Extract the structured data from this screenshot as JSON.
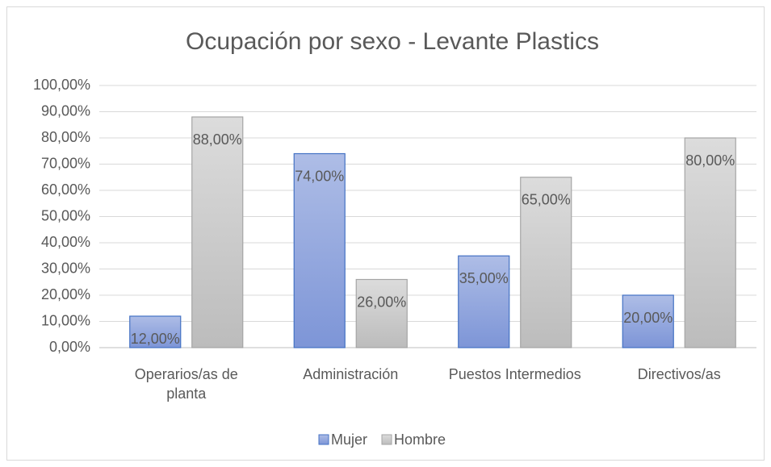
{
  "chart_data": {
    "type": "bar",
    "title": "Ocupación por sexo - Levante Plastics",
    "categories": [
      "Operarios/as de planta",
      "Administración",
      "Puestos Intermedios",
      "Directivos/as"
    ],
    "series": [
      {
        "name": "Mujer",
        "color": "#4472c4",
        "values": [
          12,
          74,
          35,
          20
        ],
        "value_labels": [
          "12,00%",
          "74,00%",
          "35,00%",
          "20,00%"
        ]
      },
      {
        "name": "Hombre",
        "color": "#a5a5a5",
        "values": [
          88,
          26,
          65,
          80
        ],
        "value_labels": [
          "88,00%",
          "26,00%",
          "65,00%",
          "80,00%"
        ]
      }
    ],
    "ylim": [
      0,
      100
    ],
    "yticks": [
      {
        "value": 0,
        "label": "0,00%"
      },
      {
        "value": 10,
        "label": "10,00%"
      },
      {
        "value": 20,
        "label": "20,00%"
      },
      {
        "value": 30,
        "label": "30,00%"
      },
      {
        "value": 40,
        "label": "40,00%"
      },
      {
        "value": 50,
        "label": "50,00%"
      },
      {
        "value": 60,
        "label": "60,00%"
      },
      {
        "value": 70,
        "label": "70,00%"
      },
      {
        "value": 80,
        "label": "80,00%"
      },
      {
        "value": 90,
        "label": "90,00%"
      },
      {
        "value": 100,
        "label": "100,00%"
      }
    ],
    "grid": true,
    "legend": "bottom"
  }
}
